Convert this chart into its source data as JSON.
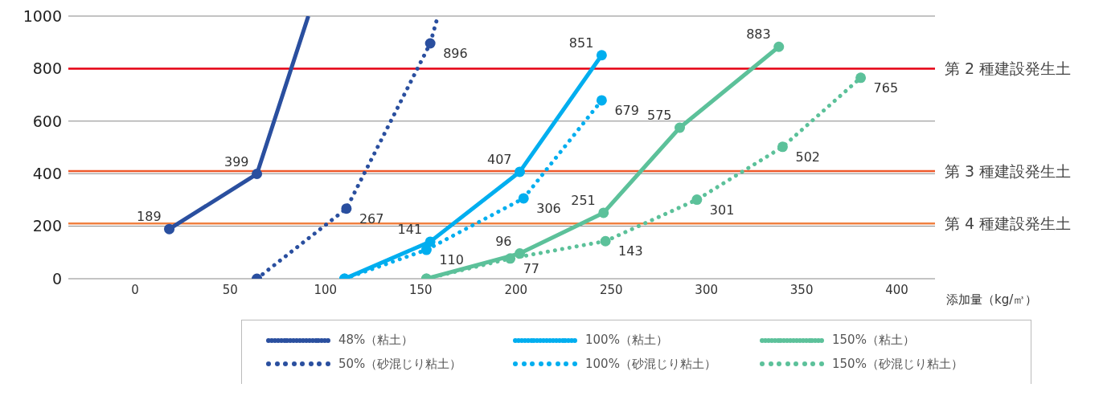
{
  "chart_data": {
    "type": "line",
    "xlabel": "添加量（kg/㎥）",
    "xlim": [
      -35,
      420
    ],
    "xticks": [
      0,
      50,
      100,
      150,
      200,
      250,
      300,
      350,
      400
    ],
    "ylim": [
      0,
      1000
    ],
    "yticks": [
      0,
      200,
      400,
      600,
      800,
      1000
    ],
    "grid": "y",
    "legend": "bottom",
    "marker": "circle",
    "series": [
      {
        "name": "48%（粘土）",
        "color": "#2a4f9f",
        "line_style": "solid",
        "x": [
          18,
          64,
          91
        ],
        "values": [
          189,
          399,
          1000
        ],
        "value_labels": [
          "189",
          "399",
          null
        ]
      },
      {
        "name": "50%（砂混じり粘土）",
        "color": "#2a4f9f",
        "line_style": "dotted",
        "x": [
          64,
          111,
          155,
          159
        ],
        "values": [
          0,
          267,
          896,
          1000
        ],
        "value_labels": [
          null,
          "267",
          "896",
          null
        ]
      },
      {
        "name": "100%（粘土）",
        "color": "#00aeef",
        "line_style": "solid",
        "x": [
          110,
          155,
          202,
          245
        ],
        "values": [
          0,
          141,
          407,
          851
        ],
        "value_labels": [
          null,
          "141",
          "407",
          "851"
        ]
      },
      {
        "name": "100%（砂混じり粘土）",
        "color": "#00aeef",
        "line_style": "dotted",
        "x": [
          110,
          153,
          204,
          245
        ],
        "values": [
          0,
          110,
          306,
          679
        ],
        "value_labels": [
          null,
          "110",
          "306",
          "679"
        ]
      },
      {
        "name": "150%（粘土）",
        "color": "#5cc19a",
        "line_style": "solid",
        "x": [
          153,
          202,
          246,
          286,
          338
        ],
        "values": [
          0,
          96,
          251,
          575,
          883
        ],
        "value_labels": [
          null,
          "96",
          "251",
          "575",
          "883"
        ]
      },
      {
        "name": "150%（砂混じり粘土）",
        "color": "#5cc19a",
        "line_style": "dotted",
        "x": [
          153,
          197,
          247,
          295,
          340,
          381
        ],
        "values": [
          0,
          77,
          143,
          301,
          502,
          765
        ],
        "value_labels": [
          null,
          "77",
          "143",
          "301",
          "502",
          "765"
        ]
      }
    ],
    "ref_lines": [
      {
        "axis": "y",
        "value": 800,
        "label": "第 2 種建設発生土",
        "color": "#e60012"
      },
      {
        "axis": "y",
        "value": 410,
        "label": "第 3 種建設発生土",
        "color": "#ee5a2c"
      },
      {
        "axis": "y",
        "value": 210,
        "label": "第 4 種建設発生土",
        "color": "#f08040"
      }
    ]
  }
}
